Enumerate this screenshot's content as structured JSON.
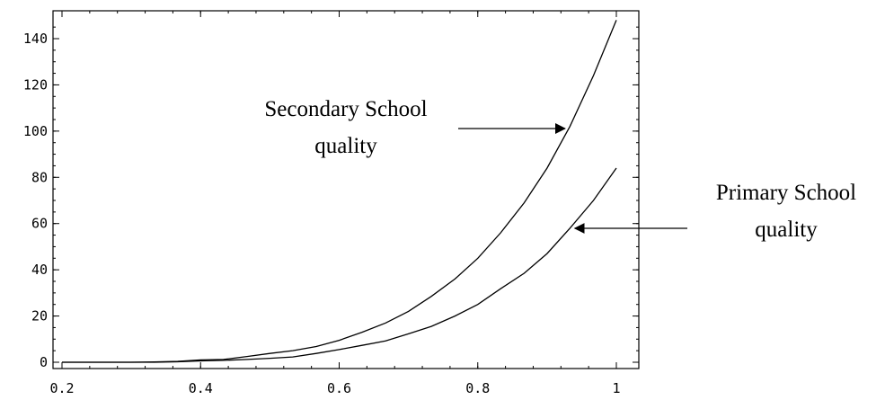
{
  "chart_data": {
    "type": "line",
    "title": "",
    "xlabel": "",
    "ylabel": "",
    "xlim": [
      0.2,
      1.0
    ],
    "ylim": [
      -3,
      150
    ],
    "grid": false,
    "x_ticks": [
      0.2,
      0.4,
      0.6,
      0.8,
      1.0
    ],
    "x_tick_labels": [
      "0.2",
      "0.4",
      "0.6",
      "0.8",
      "1"
    ],
    "y_ticks": [
      0,
      20,
      40,
      60,
      80,
      100,
      120,
      140
    ],
    "y_tick_labels": [
      "0",
      "20",
      "40",
      "60",
      "80",
      "100",
      "120",
      "140"
    ],
    "series": [
      {
        "key": "secondary",
        "x": [
          0.2,
          0.233,
          0.267,
          0.3,
          0.333,
          0.367,
          0.4,
          0.433,
          0.467,
          0.5,
          0.533,
          0.567,
          0.6,
          0.633,
          0.667,
          0.7,
          0.733,
          0.767,
          0.8,
          0.833,
          0.867,
          0.9,
          0.933,
          0.967,
          1.0
        ],
        "values": [
          0,
          0,
          0,
          0,
          0.1,
          0.4,
          1.0,
          1.2,
          2.5,
          3.8,
          5.0,
          6.8,
          9.5,
          13.0,
          17.0,
          22.0,
          28.5,
          36.0,
          45.0,
          56.0,
          69.0,
          84.0,
          102.0,
          124.0,
          148.0
        ]
      },
      {
        "key": "primary",
        "x": [
          0.2,
          0.233,
          0.267,
          0.3,
          0.333,
          0.367,
          0.4,
          0.433,
          0.467,
          0.5,
          0.533,
          0.567,
          0.6,
          0.633,
          0.667,
          0.7,
          0.733,
          0.767,
          0.8,
          0.833,
          0.867,
          0.9,
          0.933,
          0.967,
          1.0
        ],
        "values": [
          0,
          0,
          0,
          0,
          0,
          0.2,
          0.6,
          0.8,
          1.2,
          1.7,
          2.3,
          3.8,
          5.5,
          7.3,
          9.2,
          12.3,
          15.5,
          20.0,
          25.0,
          31.8,
          38.5,
          47.0,
          58.0,
          70.0,
          84.0
        ]
      }
    ],
    "annotations": [
      {
        "key": "secondary",
        "lines": [
          "Secondary School",
          "quality"
        ],
        "points_to": [
          0.926,
          100
        ]
      },
      {
        "key": "primary",
        "lines": [
          "Primary School",
          "quality"
        ],
        "points_to": [
          0.94,
          60
        ]
      }
    ]
  }
}
